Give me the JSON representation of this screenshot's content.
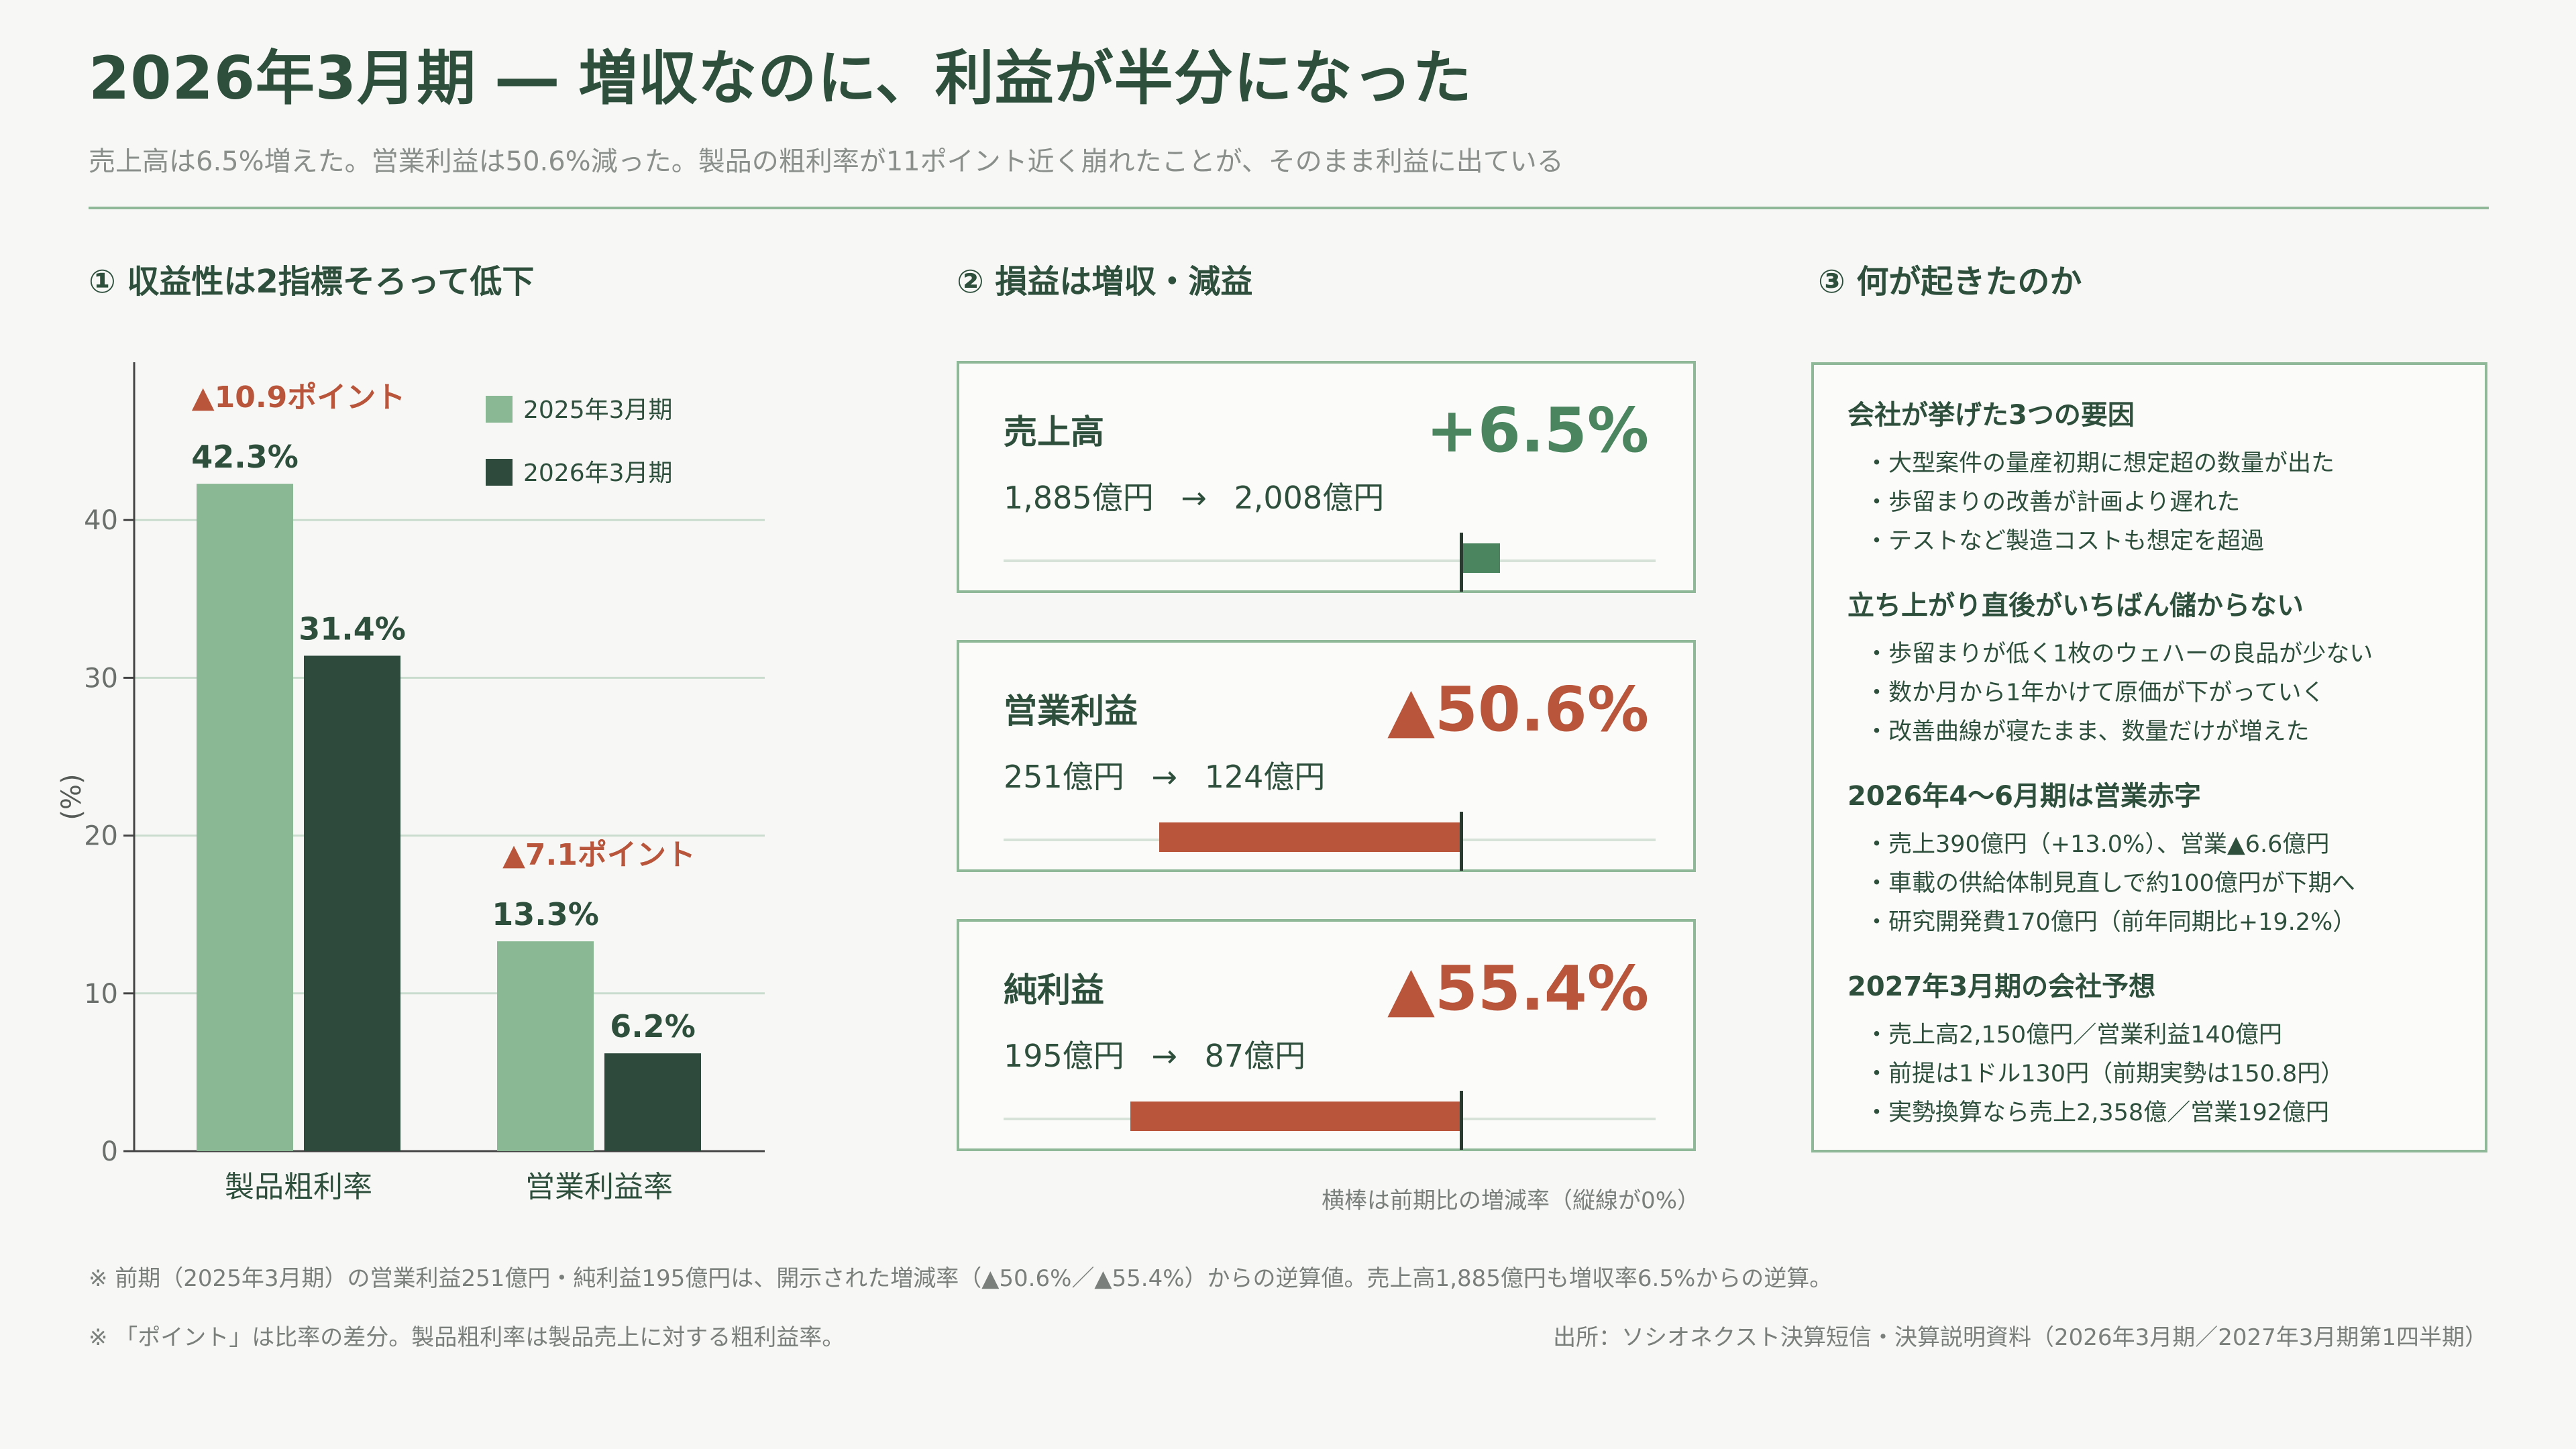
{
  "header": {
    "title": "2026年3月期 ― 増収なのに、利益が半分になった",
    "subtitle": "売上高は6.5%増えた。営業利益は50.6%減った。製品の粗利率が11ポイント近く崩れたことが、そのまま利益に出ている"
  },
  "sections": {
    "s1": "① 収益性は2指標そろって低下",
    "s2": "② 損益は増収・減益",
    "s3": "③ 何が起きたのか"
  },
  "chart_data": {
    "type": "bar",
    "categories": [
      "製品粗利率",
      "営業利益率"
    ],
    "series": [
      {
        "name": "2025年3月期",
        "values": [
          42.3,
          13.3
        ]
      },
      {
        "name": "2026年3月期",
        "values": [
          31.4,
          6.2
        ]
      }
    ],
    "value_labels": [
      [
        "42.3%",
        "13.3%"
      ],
      [
        "31.4%",
        "6.2%"
      ]
    ],
    "diff_labels": [
      "▲10.9ポイント",
      "▲7.1ポイント"
    ],
    "ylabel": "(%)",
    "ylim": [
      0,
      50
    ],
    "yticks": [
      0,
      10,
      20,
      30,
      40
    ],
    "grid": true,
    "legend_position": "top-right",
    "colors": [
      "#8bb894",
      "#2d4a3c"
    ]
  },
  "metrics": [
    {
      "name": "売上高",
      "change": "+6.5%",
      "change_value": 6.5,
      "from": "1,885億円",
      "to": "2,008億円",
      "arrow": "→",
      "color": "#4b8560"
    },
    {
      "name": "営業利益",
      "change": "▲50.6%",
      "change_value": -50.6,
      "from": "251億円",
      "to": "124億円",
      "arrow": "→",
      "color": "#b8553b"
    },
    {
      "name": "純利益",
      "change": "▲55.4%",
      "change_value": -55.4,
      "from": "195億円",
      "to": "87億円",
      "arrow": "→",
      "color": "#b8553b"
    }
  ],
  "bar_note": "横棒は前期比の増減率（縦線が0%）",
  "reasons": [
    {
      "title": "会社が挙げた3つの要因",
      "items": [
        "・大型案件の量産初期に想定超の数量が出た",
        "・歩留まりの改善が計画より遅れた",
        "・テストなど製造コストも想定を超過"
      ]
    },
    {
      "title": "立ち上がり直後がいちばん儲からない",
      "items": [
        "・歩留まりが低く1枚のウェハーの良品が少ない",
        "・数か月から1年かけて原価が下がっていく",
        "・改善曲線が寝たまま、数量だけが増えた"
      ]
    },
    {
      "title": "2026年4〜6月期は営業赤字",
      "items": [
        "・売上390億円（+13.0%）、営業▲6.6億円",
        "・車載の供給体制見直しで約100億円が下期へ",
        "・研究開発費170億円（前年同期比+19.2%）"
      ]
    },
    {
      "title": "2027年3月期の会社予想",
      "items": [
        "・売上高2,150億円／営業利益140億円",
        "・前提は1ドル130円（前期実勢は150.8円）",
        "・実勢換算なら売上2,358億／営業192億円"
      ]
    }
  ],
  "footer": {
    "note1": "※ 前期（2025年3月期）の営業利益251億円・純利益195億円は、開示された増減率（▲50.6%／▲55.4%）からの逆算値。売上高1,885億円も増収率6.5%からの逆算。",
    "note2": "※ 「ポイント」は比率の差分。製品粗利率は製品売上に対する粗利益率。",
    "source": "出所：ソシオネクスト決算短信・決算説明資料（2026年3月期／2027年3月期第1四半期）"
  },
  "colors": {
    "accent_green": "#8fb898",
    "dark_green": "#2d4a3c",
    "red": "#b8553b"
  }
}
